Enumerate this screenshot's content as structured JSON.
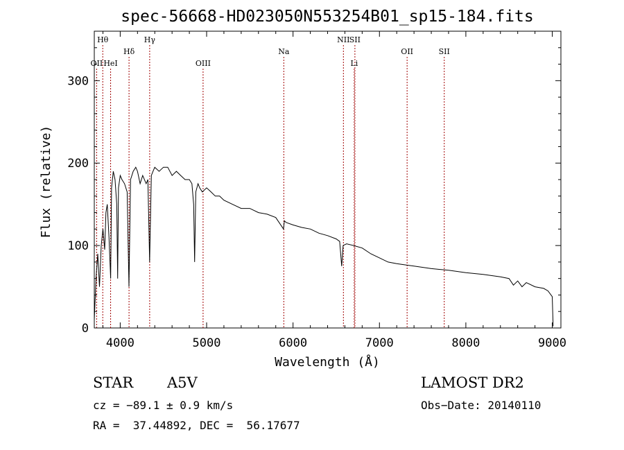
{
  "chart_data": {
    "type": "line",
    "title": "spec-56668-HD023050N553254B01_sp15-184.fits",
    "xlabel": "Wavelength (Å)",
    "ylabel": "Flux (relative)",
    "xlim": [
      3700,
      9100
    ],
    "ylim": [
      0,
      360
    ],
    "xticks": [
      4000,
      5000,
      6000,
      7000,
      8000,
      9000
    ],
    "yticks": [
      0,
      100,
      200,
      300
    ],
    "grid": false,
    "series": [
      {
        "x": [
          3700,
          3720,
          3740,
          3760,
          3780,
          3800,
          3820,
          3835,
          3850,
          3870,
          3889,
          3900,
          3920,
          3940,
          3960,
          3970,
          3980,
          4000,
          4020,
          4050,
          4080,
          4101,
          4120,
          4150,
          4180,
          4200,
          4230,
          4260,
          4300,
          4320,
          4340,
          4360,
          4380,
          4400,
          4450,
          4500,
          4550,
          4600,
          4650,
          4700,
          4750,
          4800,
          4830,
          4850,
          4861,
          4875,
          4900,
          4920,
          4950,
          5000,
          5050,
          5100,
          5150,
          5200,
          5300,
          5400,
          5500,
          5600,
          5700,
          5800,
          5890,
          5900,
          5920,
          6000,
          6100,
          6200,
          6300,
          6400,
          6500,
          6540,
          6563,
          6580,
          6620,
          6700,
          6800,
          6900,
          7000,
          7100,
          7200,
          7400,
          7600,
          7800,
          8000,
          8200,
          8400,
          8500,
          8550,
          8600,
          8650,
          8700,
          8800,
          8900,
          8950,
          9000,
          9010
        ],
        "y": [
          10,
          60,
          90,
          50,
          100,
          120,
          95,
          140,
          150,
          110,
          60,
          170,
          190,
          180,
          150,
          60,
          170,
          185,
          180,
          175,
          165,
          50,
          180,
          190,
          195,
          190,
          175,
          185,
          175,
          180,
          80,
          185,
          190,
          195,
          190,
          195,
          195,
          185,
          190,
          185,
          180,
          180,
          175,
          150,
          80,
          165,
          175,
          170,
          165,
          170,
          165,
          160,
          160,
          155,
          150,
          145,
          145,
          140,
          138,
          134,
          120,
          130,
          128,
          125,
          122,
          120,
          115,
          112,
          108,
          105,
          75,
          100,
          102,
          100,
          97,
          90,
          85,
          80,
          78,
          75,
          72,
          70,
          67,
          65,
          62,
          60,
          52,
          57,
          50,
          55,
          50,
          48,
          45,
          38,
          2
        ]
      }
    ],
    "lines": [
      {
        "label": "Hθ",
        "x": 3798,
        "row": 1
      },
      {
        "label": "OII",
        "x": 3727,
        "row": 3
      },
      {
        "label": "HeI",
        "x": 3889,
        "row": 3
      },
      {
        "label": "Hδ",
        "x": 4102,
        "row": 2
      },
      {
        "label": "Hγ",
        "x": 4341,
        "row": 1
      },
      {
        "label": "OIII",
        "x": 4959,
        "row": 3
      },
      {
        "label": "Na",
        "x": 5893,
        "row": 2
      },
      {
        "label": "NII",
        "x": 6583,
        "row": 1
      },
      {
        "label": "SII",
        "x": 6716,
        "row": 1
      },
      {
        "label": "Li",
        "x": 6708,
        "row": 3
      },
      {
        "label": "OII",
        "x": 7320,
        "row": 2
      },
      {
        "label": "SII",
        "x": 7750,
        "row": 2
      }
    ]
  },
  "info": {
    "class": "STAR",
    "subclass": "A5V",
    "survey": "LAMOST DR2",
    "cz": "cz = −89.1 ± 0.9 km/s",
    "obs_date": "Obs−Date: 20140110",
    "radec": "RA =  37.44892, DEC =  56.17677"
  }
}
